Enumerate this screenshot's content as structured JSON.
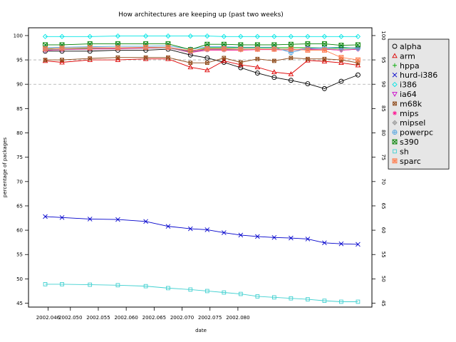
{
  "chart_data": {
    "type": "line",
    "title": "How architectures are keeping up (past two weeks)",
    "xlabel": "date",
    "ylabel": "percentage of packages",
    "x": [
      2002.0455,
      2002.0485,
      2002.0535,
      2002.0585,
      2002.0635,
      2002.0675,
      2002.0715,
      2002.0745,
      2002.0775,
      2002.0805,
      2002.0835,
      2002.0865,
      2002.0895,
      2002.0925,
      2002.0955,
      2002.0985,
      2002.1015
    ],
    "xlim": [
      2002.0425,
      2002.104
    ],
    "ylim": [
      44.2,
      101.6
    ],
    "x_ticks": [
      2002.046,
      2002.05,
      2002.055,
      2002.06,
      2002.065,
      2002.07,
      2002.075,
      2002.08
    ],
    "x_tick_labels": [
      "2002.046",
      "2002.050",
      "2002.055",
      "2002.060",
      "2002.065",
      "2002.070",
      "2002.075",
      "2002.080"
    ],
    "y_ticks": [
      45,
      50,
      55,
      60,
      65,
      70,
      75,
      80,
      85,
      90,
      95,
      100
    ],
    "y_tick_labels": [
      "45",
      "50",
      "55",
      "60",
      "65",
      "70",
      "75",
      "80",
      "85",
      "90",
      "95",
      "100"
    ],
    "reference_lines": [
      90,
      95
    ],
    "legend_position": "right",
    "series": [
      {
        "name": "alpha",
        "color": "#000000",
        "marker": "circle",
        "values": [
          96.8,
          96.8,
          96.8,
          97.0,
          97.0,
          97.2,
          96.0,
          95.4,
          94.5,
          93.4,
          92.3,
          91.4,
          90.8,
          90.1,
          89.1,
          90.6,
          91.9
        ]
      },
      {
        "name": "arm",
        "color": "#dd0000",
        "marker": "triangle",
        "values": [
          94.8,
          94.5,
          95.0,
          95.0,
          95.2,
          95.2,
          93.5,
          92.9,
          94.8,
          94.0,
          93.5,
          92.5,
          92.1,
          94.9,
          94.7,
          94.4,
          93.9
        ]
      },
      {
        "name": "hppa",
        "color": "#00aa00",
        "marker": "plus",
        "values": [
          97.2,
          97.4,
          97.4,
          97.4,
          97.4,
          97.5,
          96.8,
          97.5,
          97.5,
          97.5,
          97.5,
          97.5,
          97.5,
          97.5,
          97.5,
          97.4,
          97.5
        ]
      },
      {
        "name": "hurd-i386",
        "color": "#0000cc",
        "marker": "cross",
        "values": [
          62.8,
          62.6,
          62.3,
          62.2,
          61.8,
          60.8,
          60.3,
          60.1,
          59.5,
          59.0,
          58.7,
          58.5,
          58.4,
          58.2,
          57.4,
          57.2,
          57.1
        ]
      },
      {
        "name": "i386",
        "color": "#00e5e5",
        "marker": "diamond",
        "values": [
          99.8,
          99.8,
          99.8,
          99.9,
          99.9,
          99.9,
          99.9,
          99.9,
          99.8,
          99.8,
          99.8,
          99.8,
          99.8,
          99.8,
          99.8,
          99.8,
          99.8
        ]
      },
      {
        "name": "ia64",
        "color": "#cc00cc",
        "marker": "triangle-down",
        "values": [
          97.0,
          97.1,
          97.3,
          97.4,
          97.5,
          97.5,
          96.7,
          97.2,
          97.2,
          97.2,
          97.2,
          97.2,
          97.0,
          97.3,
          97.2,
          97.0,
          97.2
        ]
      },
      {
        "name": "m68k",
        "color": "#8b4513",
        "marker": "square-x",
        "values": [
          95.0,
          95.0,
          95.3,
          95.5,
          95.5,
          95.5,
          94.4,
          94.4,
          95.4,
          94.5,
          95.2,
          94.8,
          95.4,
          95.2,
          95.2,
          95.0,
          94.4
        ]
      },
      {
        "name": "mips",
        "color": "#ff1493",
        "marker": "asterisk",
        "values": [
          97.0,
          97.1,
          97.2,
          97.3,
          97.4,
          97.5,
          96.5,
          97.0,
          97.0,
          97.0,
          97.1,
          97.1,
          97.0,
          97.1,
          97.2,
          97.0,
          97.2
        ]
      },
      {
        "name": "mipsel",
        "color": "#999999",
        "marker": "diamond-plus",
        "values": [
          97.1,
          97.2,
          97.3,
          97.4,
          97.5,
          97.5,
          96.6,
          97.1,
          97.1,
          97.1,
          97.2,
          97.2,
          97.0,
          97.2,
          97.3,
          97.1,
          97.3
        ]
      },
      {
        "name": "powerpc",
        "color": "#4fa3e0",
        "marker": "circle-plus",
        "values": [
          97.5,
          97.6,
          97.7,
          97.8,
          97.8,
          97.9,
          97.2,
          97.7,
          97.7,
          97.6,
          97.6,
          97.6,
          96.5,
          97.4,
          97.5,
          97.6,
          97.4
        ]
      },
      {
        "name": "s390",
        "color": "#008000",
        "marker": "boxed-x",
        "values": [
          98.1,
          98.1,
          98.3,
          98.3,
          98.3,
          98.3,
          97.1,
          98.2,
          98.2,
          98.1,
          98.1,
          98.1,
          98.2,
          98.3,
          98.3,
          98.0,
          98.1
        ]
      },
      {
        "name": "sh",
        "color": "#40d0d0",
        "marker": "square",
        "values": [
          48.9,
          48.9,
          48.8,
          48.7,
          48.5,
          48.1,
          47.8,
          47.5,
          47.2,
          46.9,
          46.4,
          46.2,
          46.0,
          45.8,
          45.5,
          45.3,
          45.3
        ]
      },
      {
        "name": "sparc",
        "color": "#ff7f50",
        "marker": "square-star",
        "values": [
          97.3,
          97.4,
          97.5,
          97.5,
          97.6,
          97.6,
          96.9,
          97.3,
          97.3,
          97.2,
          97.2,
          97.2,
          97.2,
          97.0,
          97.0,
          95.5,
          95.0
        ]
      }
    ]
  }
}
